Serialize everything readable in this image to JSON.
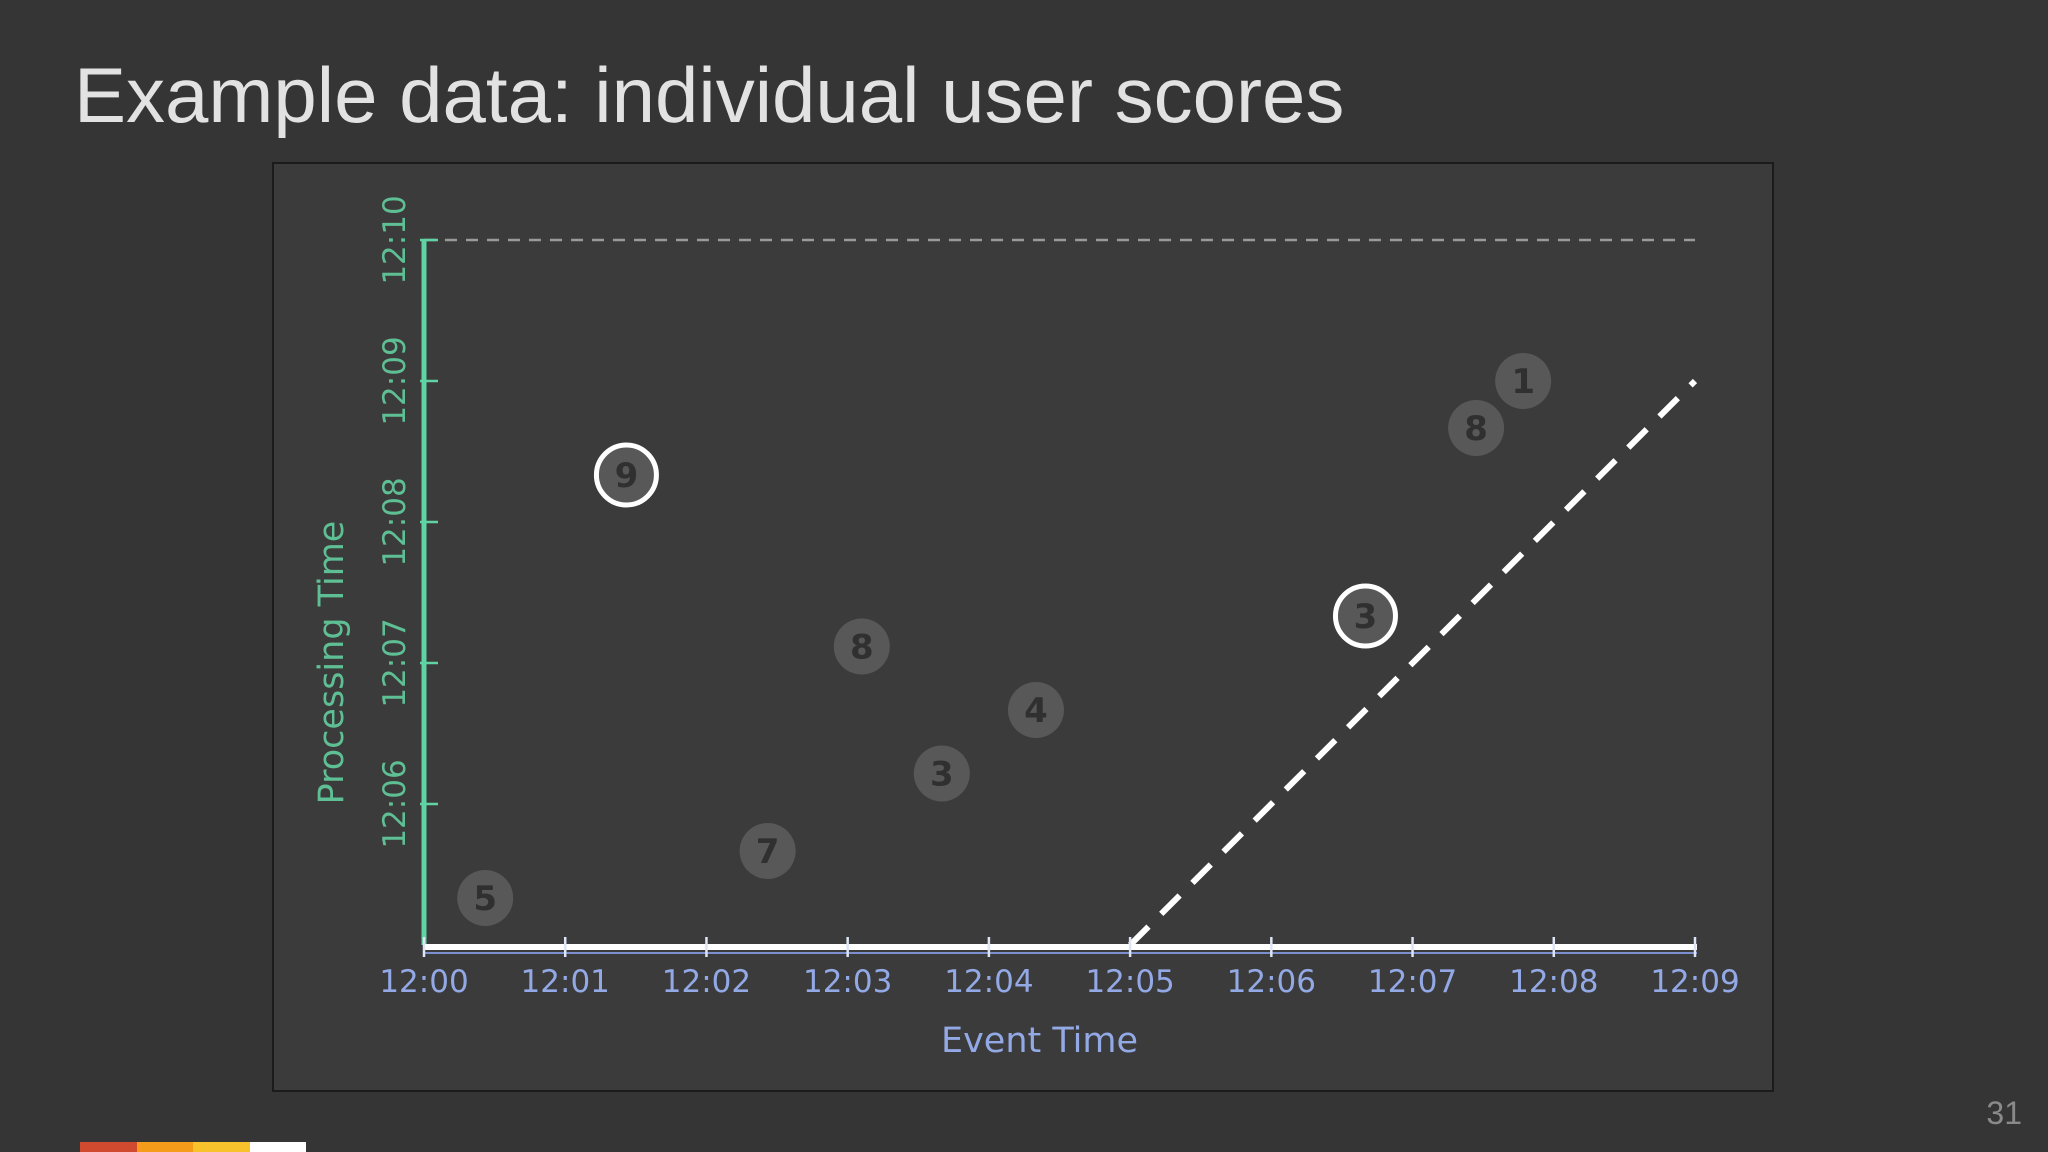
{
  "slide": {
    "title": "Example data: individual user scores",
    "page_number": "31"
  },
  "colors": {
    "background": "#353535",
    "plot_background": "#3b3b3b",
    "x_axis": "#ffffff",
    "y_axis": "#5fd3a4",
    "x_labels": "#93a9e6",
    "y_labels": "#5fbf94",
    "point_fill": "#585858",
    "point_text": "#303030",
    "highlight_ring": "#ffffff",
    "watermark_line": "#ffffff",
    "brand_bar": [
      "#d04a2f",
      "#f59d1a",
      "#f7c22c",
      "#ffffff"
    ]
  },
  "chart_data": {
    "type": "scatter",
    "xlabel": "Event Time",
    "ylabel": "Processing Time",
    "x_ticks": [
      "12:00",
      "12:01",
      "12:02",
      "12:03",
      "12:04",
      "12:05",
      "12:06",
      "12:07",
      "12:08",
      "12:09"
    ],
    "y_ticks": [
      "12:06",
      "12:07",
      "12:08",
      "12:09",
      "12:10"
    ],
    "x_range": [
      "12:00",
      "12:09"
    ],
    "y_range": [
      "12:05",
      "12:10"
    ],
    "grid": false,
    "points": [
      {
        "event_time": "12:00:26",
        "processing_time": "12:05:20",
        "score": "5",
        "highlighted": false
      },
      {
        "event_time": "12:01:26",
        "processing_time": "12:08:20",
        "score": "9",
        "highlighted": true
      },
      {
        "event_time": "12:02:26",
        "processing_time": "12:05:40",
        "score": "7",
        "highlighted": false
      },
      {
        "event_time": "12:03:06",
        "processing_time": "12:07:07",
        "score": "8",
        "highlighted": false
      },
      {
        "event_time": "12:03:40",
        "processing_time": "12:06:13",
        "score": "3",
        "highlighted": false
      },
      {
        "event_time": "12:04:20",
        "processing_time": "12:06:40",
        "score": "4",
        "highlighted": false
      },
      {
        "event_time": "12:06:40",
        "processing_time": "12:07:20",
        "score": "3",
        "highlighted": true
      },
      {
        "event_time": "12:07:27",
        "processing_time": "12:08:40",
        "score": "8",
        "highlighted": false
      },
      {
        "event_time": "12:07:47",
        "processing_time": "12:09:00",
        "score": "1",
        "highlighted": false
      }
    ],
    "reference_lines": [
      {
        "kind": "horizontal-dashed",
        "y": "12:10",
        "x_from": "12:00",
        "x_to": "12:09"
      },
      {
        "kind": "diagonal-dashed",
        "from": {
          "x": "12:05",
          "y": "12:05"
        },
        "to": {
          "x": "12:09",
          "y": "12:09"
        }
      }
    ]
  }
}
